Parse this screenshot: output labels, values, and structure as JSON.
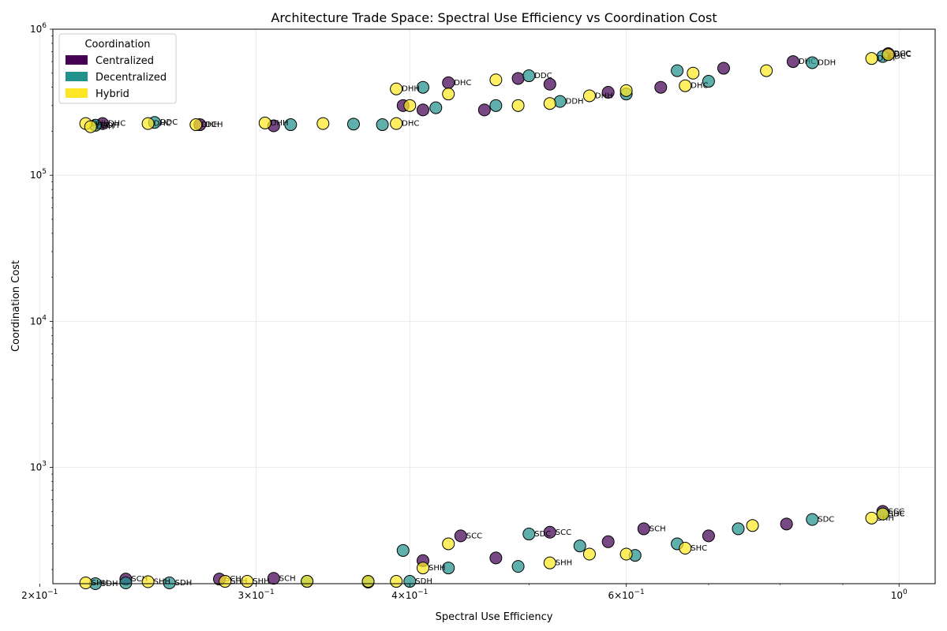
{
  "chart_data": {
    "type": "scatter",
    "title": "Architecture Trade Space: Spectral Use Efficiency vs Coordination Cost",
    "xlabel": "Spectral Use Efficiency",
    "ylabel": "Coordination Cost",
    "x_scale": "log",
    "y_scale": "log",
    "xlim": [
      0.205,
      1.07
    ],
    "ylim": [
      160,
      1000000
    ],
    "x_ticks": [
      {
        "value": 0.2,
        "base": "2×10",
        "exp": "−1"
      },
      {
        "value": 0.3,
        "base": "3×10",
        "exp": "−1"
      },
      {
        "value": 0.4,
        "base": "4×10",
        "exp": "−1"
      },
      {
        "value": 0.6,
        "base": "6×10",
        "exp": "−1"
      },
      {
        "value": 1.0,
        "base": "10",
        "exp": "0"
      }
    ],
    "y_ticks": [
      {
        "value": 1000,
        "base": "10",
        "exp": "3"
      },
      {
        "value": 10000,
        "base": "10",
        "exp": "4"
      },
      {
        "value": 100000,
        "base": "10",
        "exp": "5"
      },
      {
        "value": 1000000,
        "base": "10",
        "exp": "6"
      }
    ],
    "grid": true,
    "legend": {
      "title": "Coordination",
      "placement": "top-left",
      "entries": [
        {
          "name": "Centralized",
          "color": "#440154"
        },
        {
          "name": "Decentralized",
          "color": "#21918c"
        },
        {
          "name": "Hybrid",
          "color": "#fde725"
        }
      ]
    },
    "series": [
      {
        "name": "Centralized",
        "color": "#440154",
        "points": [
          {
            "x": 0.225,
            "y": 226000,
            "label": "DHC"
          },
          {
            "x": 0.27,
            "y": 222000,
            "label": "DCH"
          },
          {
            "x": 0.31,
            "y": 218000,
            "label": ""
          },
          {
            "x": 0.395,
            "y": 300000,
            "label": ""
          },
          {
            "x": 0.41,
            "y": 280000,
            "label": ""
          },
          {
            "x": 0.43,
            "y": 430000,
            "label": "DHC"
          },
          {
            "x": 0.46,
            "y": 280000,
            "label": ""
          },
          {
            "x": 0.49,
            "y": 460000,
            "label": ""
          },
          {
            "x": 0.52,
            "y": 420000,
            "label": ""
          },
          {
            "x": 0.58,
            "y": 370000,
            "label": ""
          },
          {
            "x": 0.64,
            "y": 400000,
            "label": ""
          },
          {
            "x": 0.72,
            "y": 540000,
            "label": ""
          },
          {
            "x": 0.82,
            "y": 600000,
            "label": "DHC"
          },
          {
            "x": 0.98,
            "y": 680000,
            "label": "DCC"
          },
          {
            "x": 0.235,
            "y": 172,
            "label": "SCH"
          },
          {
            "x": 0.28,
            "y": 172,
            "label": "SCH"
          },
          {
            "x": 0.31,
            "y": 174,
            "label": "SCH"
          },
          {
            "x": 0.41,
            "y": 230,
            "label": ""
          },
          {
            "x": 0.44,
            "y": 340,
            "label": "SCC"
          },
          {
            "x": 0.47,
            "y": 240,
            "label": ""
          },
          {
            "x": 0.52,
            "y": 360,
            "label": "SCC"
          },
          {
            "x": 0.58,
            "y": 310,
            "label": ""
          },
          {
            "x": 0.62,
            "y": 380,
            "label": "SCH"
          },
          {
            "x": 0.7,
            "y": 340,
            "label": ""
          },
          {
            "x": 0.81,
            "y": 410,
            "label": ""
          },
          {
            "x": 0.97,
            "y": 500,
            "label": "SCC"
          }
        ]
      },
      {
        "name": "Decentralized",
        "color": "#21918c",
        "points": [
          {
            "x": 0.222,
            "y": 220000,
            "label": "DDH"
          },
          {
            "x": 0.248,
            "y": 230000,
            "label": "DDC"
          },
          {
            "x": 0.32,
            "y": 222000,
            "label": ""
          },
          {
            "x": 0.36,
            "y": 224000,
            "label": ""
          },
          {
            "x": 0.38,
            "y": 222000,
            "label": ""
          },
          {
            "x": 0.41,
            "y": 400000,
            "label": ""
          },
          {
            "x": 0.42,
            "y": 290000,
            "label": ""
          },
          {
            "x": 0.47,
            "y": 300000,
            "label": ""
          },
          {
            "x": 0.5,
            "y": 480000,
            "label": "DDC"
          },
          {
            "x": 0.53,
            "y": 320000,
            "label": "DDH"
          },
          {
            "x": 0.6,
            "y": 360000,
            "label": ""
          },
          {
            "x": 0.66,
            "y": 520000,
            "label": ""
          },
          {
            "x": 0.7,
            "y": 440000,
            "label": ""
          },
          {
            "x": 0.85,
            "y": 590000,
            "label": "DDH"
          },
          {
            "x": 0.97,
            "y": 650000,
            "label": "DDC"
          },
          {
            "x": 0.222,
            "y": 160,
            "label": "SDH"
          },
          {
            "x": 0.235,
            "y": 162,
            "label": ""
          },
          {
            "x": 0.255,
            "y": 162,
            "label": "SDH"
          },
          {
            "x": 0.33,
            "y": 166,
            "label": ""
          },
          {
            "x": 0.37,
            "y": 164,
            "label": ""
          },
          {
            "x": 0.4,
            "y": 166,
            "label": "SDH"
          },
          {
            "x": 0.395,
            "y": 270,
            "label": ""
          },
          {
            "x": 0.43,
            "y": 205,
            "label": ""
          },
          {
            "x": 0.49,
            "y": 210,
            "label": ""
          },
          {
            "x": 0.5,
            "y": 350,
            "label": "SDC"
          },
          {
            "x": 0.55,
            "y": 290,
            "label": ""
          },
          {
            "x": 0.61,
            "y": 250,
            "label": ""
          },
          {
            "x": 0.66,
            "y": 300,
            "label": ""
          },
          {
            "x": 0.74,
            "y": 380,
            "label": ""
          },
          {
            "x": 0.85,
            "y": 440,
            "label": "SDC"
          },
          {
            "x": 0.97,
            "y": 480,
            "label": "SDC"
          }
        ]
      },
      {
        "name": "Hybrid",
        "color": "#fde725",
        "points": [
          {
            "x": 0.218,
            "y": 226000,
            "label": "DHH"
          },
          {
            "x": 0.22,
            "y": 215000,
            "label": "DHH"
          },
          {
            "x": 0.245,
            "y": 226000,
            "label": "DHC"
          },
          {
            "x": 0.268,
            "y": 222000,
            "label": "DHH"
          },
          {
            "x": 0.305,
            "y": 228000,
            "label": "DHH"
          },
          {
            "x": 0.34,
            "y": 226000,
            "label": ""
          },
          {
            "x": 0.39,
            "y": 226000,
            "label": "DHC"
          },
          {
            "x": 0.39,
            "y": 390000,
            "label": "DHH"
          },
          {
            "x": 0.4,
            "y": 300000,
            "label": ""
          },
          {
            "x": 0.43,
            "y": 360000,
            "label": ""
          },
          {
            "x": 0.47,
            "y": 450000,
            "label": ""
          },
          {
            "x": 0.49,
            "y": 300000,
            "label": ""
          },
          {
            "x": 0.52,
            "y": 310000,
            "label": ""
          },
          {
            "x": 0.56,
            "y": 350000,
            "label": "DHH"
          },
          {
            "x": 0.6,
            "y": 380000,
            "label": ""
          },
          {
            "x": 0.67,
            "y": 410000,
            "label": "DHC"
          },
          {
            "x": 0.68,
            "y": 500000,
            "label": ""
          },
          {
            "x": 0.78,
            "y": 520000,
            "label": ""
          },
          {
            "x": 0.95,
            "y": 630000,
            "label": "DHH"
          },
          {
            "x": 0.98,
            "y": 670000,
            "label": "DHC"
          },
          {
            "x": 0.218,
            "y": 162,
            "label": "SHH"
          },
          {
            "x": 0.245,
            "y": 165,
            "label": "SHH"
          },
          {
            "x": 0.283,
            "y": 166,
            "label": "SHH"
          },
          {
            "x": 0.295,
            "y": 166,
            "label": "SHH"
          },
          {
            "x": 0.33,
            "y": 166,
            "label": ""
          },
          {
            "x": 0.37,
            "y": 166,
            "label": ""
          },
          {
            "x": 0.39,
            "y": 166,
            "label": ""
          },
          {
            "x": 0.41,
            "y": 205,
            "label": "SHH"
          },
          {
            "x": 0.43,
            "y": 300,
            "label": ""
          },
          {
            "x": 0.52,
            "y": 222,
            "label": "SHH"
          },
          {
            "x": 0.56,
            "y": 255,
            "label": ""
          },
          {
            "x": 0.6,
            "y": 255,
            "label": ""
          },
          {
            "x": 0.67,
            "y": 280,
            "label": "SHC"
          },
          {
            "x": 0.76,
            "y": 400,
            "label": ""
          },
          {
            "x": 0.95,
            "y": 450,
            "label": "SHH"
          },
          {
            "x": 0.97,
            "y": 480,
            "label": "SHC"
          }
        ]
      }
    ]
  }
}
